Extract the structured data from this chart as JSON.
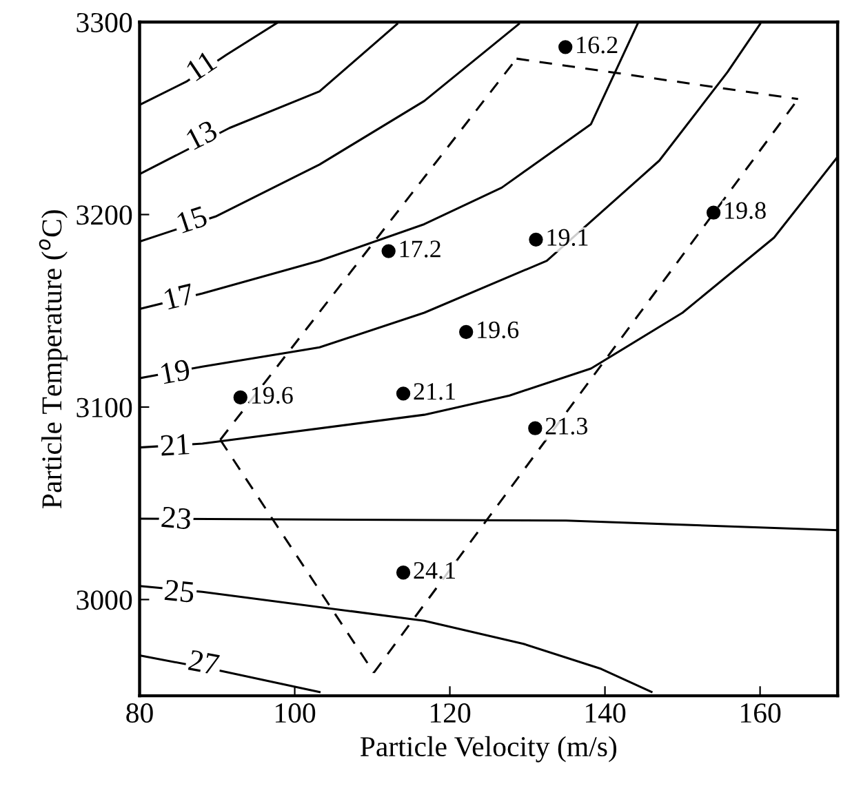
{
  "chart_data": {
    "type": "scatter",
    "xlabel": "Particle Velocity (m/s)",
    "ylabel": "Particle Temperature ($^{o}$C)",
    "xlim": [
      80,
      170
    ],
    "ylim": [
      2950,
      3300
    ],
    "xticks": [
      80,
      100,
      120,
      140,
      160
    ],
    "yticks": [
      3000,
      3100,
      3200,
      3300
    ],
    "grid": false,
    "series": [
      {
        "type": "line",
        "color": "#000000",
        "line_style": "solid",
        "marker": "none",
        "x": [
          80,
          86,
          91.2,
          97.9
        ],
        "values": [
          3257,
          3269,
          3283,
          3300
        ]
      },
      {
        "type": "line",
        "color": "#000000",
        "line_style": "solid",
        "marker": "none",
        "x": [
          80,
          91.6,
          103.2,
          113.2
        ],
        "values": [
          3221,
          3245,
          3264,
          3299
        ]
      },
      {
        "type": "line",
        "color": "#000000",
        "line_style": "solid",
        "marker": "none",
        "x": [
          80,
          89.8,
          103.2,
          116.7,
          128.9
        ],
        "values": [
          3186,
          3199,
          3226,
          3259,
          3299
        ]
      },
      {
        "type": "line",
        "color": "#000000",
        "line_style": "solid",
        "marker": "none",
        "x": [
          80,
          88.1,
          103.2,
          116.7,
          126.7,
          138.2,
          144.2
        ],
        "values": [
          3151,
          3159,
          3176,
          3195,
          3214,
          3247,
          3299
        ]
      },
      {
        "type": "line",
        "color": "#000000",
        "line_style": "solid",
        "marker": "none",
        "x": [
          80,
          88.1,
          103.2,
          116.7,
          132.5,
          147,
          155.8,
          160
        ],
        "values": [
          3115,
          3121,
          3131,
          3149,
          3176,
          3228,
          3274,
          3299
        ]
      },
      {
        "type": "line",
        "color": "#000000",
        "line_style": "solid",
        "marker": "none",
        "x": [
          80,
          88.1,
          116.7,
          127.7,
          138.2,
          150,
          161.8,
          170
        ],
        "values": [
          3079,
          3081,
          3096,
          3106,
          3120,
          3149,
          3188,
          3230
        ]
      },
      {
        "type": "line",
        "color": "#000000",
        "line_style": "solid",
        "marker": "none",
        "x": [
          80,
          135,
          170
        ],
        "values": [
          3042,
          3041,
          3036
        ]
      },
      {
        "type": "line",
        "color": "#000000",
        "line_style": "solid",
        "marker": "none",
        "x": [
          80,
          88.1,
          116.7,
          129.5,
          139.5,
          146
        ],
        "values": [
          3007,
          3004,
          2989,
          2977,
          2964,
          2952
        ]
      },
      {
        "type": "line",
        "color": "#000000",
        "line_style": "solid",
        "marker": "none",
        "x": [
          80,
          90.4,
          103.2
        ],
        "values": [
          2971,
          2963,
          2952
        ]
      },
      {
        "type": "line",
        "color": "#000000",
        "line_style": "dashed",
        "marker": "none",
        "x": [
          90.4,
          128.6
        ],
        "values": [
          3083,
          3281
        ]
      },
      {
        "type": "line",
        "color": "#000000",
        "line_style": "dashed",
        "marker": "none",
        "x": [
          128.6,
          164.9
        ],
        "values": [
          3281,
          3260
        ]
      },
      {
        "type": "line",
        "color": "#000000",
        "line_style": "dashed",
        "marker": "none",
        "x": [
          110.2,
          164.9
        ],
        "values": [
          2962,
          3260
        ]
      },
      {
        "type": "line",
        "color": "#000000",
        "line_style": "dashed",
        "marker": "none",
        "x": [
          90.4,
          110.2
        ],
        "values": [
          3083,
          2962
        ]
      },
      {
        "color": "#000000",
        "marker": "circle",
        "x": [
          134.9,
          112.1,
          131.1,
          154,
          122.1,
          93,
          114,
          131,
          114
        ],
        "values": [
          3287,
          3181,
          3187,
          3201,
          3139,
          3105,
          3107,
          3089,
          3014
        ]
      }
    ],
    "annotations": [
      {
        "text": "16.2",
        "x": 134.9,
        "y": 3287
      },
      {
        "text": "17.2",
        "x": 112.1,
        "y": 3181
      },
      {
        "text": "19.1",
        "x": 131.1,
        "y": 3187
      },
      {
        "text": "19.8",
        "x": 154,
        "y": 3201
      },
      {
        "text": "19.6",
        "x": 122.1,
        "y": 3139
      },
      {
        "text": "19.6",
        "x": 93,
        "y": 3105
      },
      {
        "text": "21.1",
        "x": 114,
        "y": 3107
      },
      {
        "text": "21.3",
        "x": 131,
        "y": 3089
      },
      {
        "text": "24.1",
        "x": 114,
        "y": 3014
      },
      {
        "text": "11",
        "x": 88.1,
        "y": 3276
      },
      {
        "text": "13",
        "x": 88.1,
        "y": 3240
      },
      {
        "text": "15",
        "x": 86.8,
        "y": 3196
      },
      {
        "text": "17",
        "x": 85.1,
        "y": 3156
      },
      {
        "text": "19",
        "x": 84.6,
        "y": 3117
      },
      {
        "text": "21",
        "x": 84.6,
        "y": 3079
      },
      {
        "text": "23",
        "x": 84.7,
        "y": 3041
      },
      {
        "text": "25",
        "x": 85.1,
        "y": 3003
      },
      {
        "text": "27",
        "x": 88.2,
        "y": 2966
      }
    ]
  }
}
